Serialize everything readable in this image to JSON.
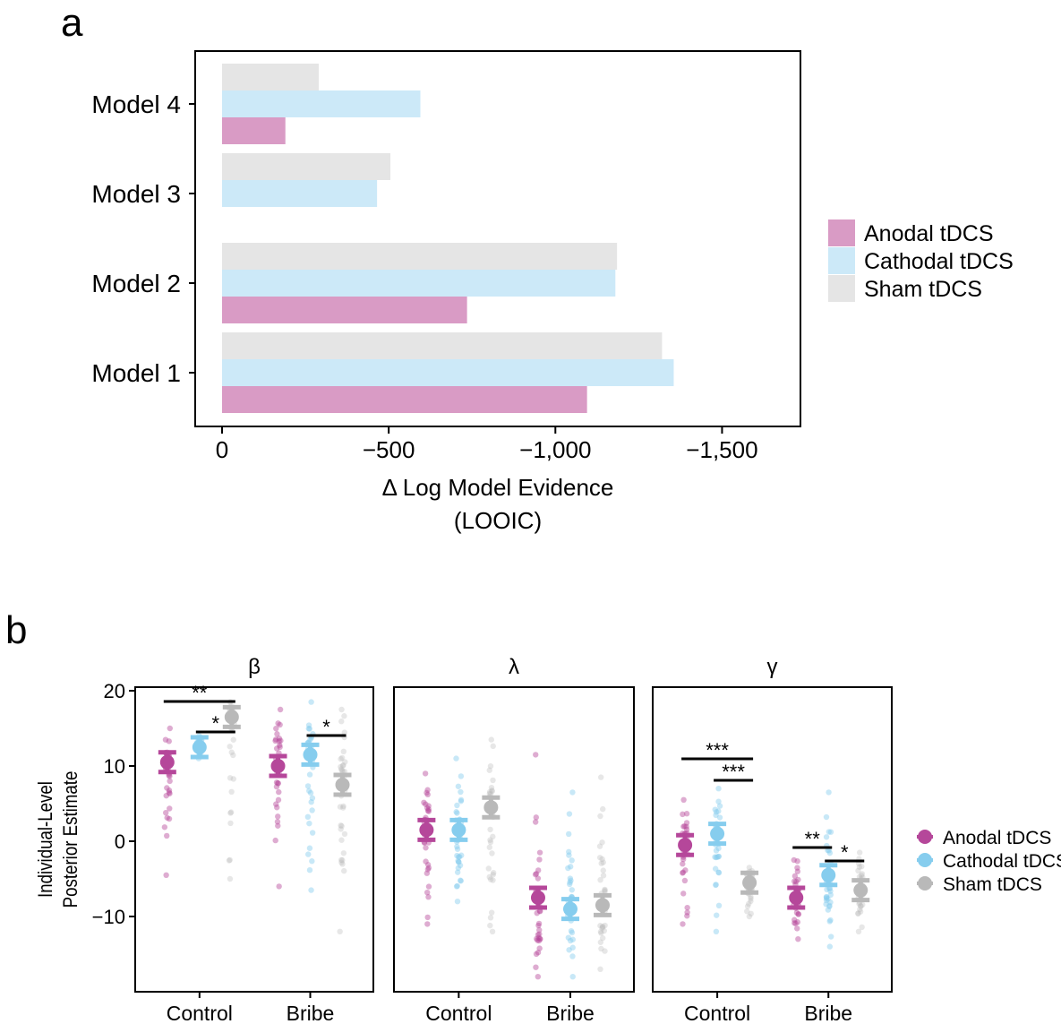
{
  "panel_labels": {
    "a": "a",
    "b": "b"
  },
  "colors": {
    "anodal": "#d99bc5",
    "cathodal": "#cce9f8",
    "sham": "#e5e5e5",
    "anodal_dot": "#b5479a",
    "cathodal_dot": "#86cdee",
    "sham_dot": "#b9b9b9"
  },
  "chart_data": [
    {
      "type": "bar",
      "orientation": "horizontal",
      "panel": "a",
      "categories": [
        "Model 1",
        "Model 2",
        "Model 3",
        "Model 4"
      ],
      "series": [
        {
          "name": "Anodal tDCS",
          "values": [
            -1095,
            -735,
            null,
            -190
          ]
        },
        {
          "name": "Cathodal tDCS",
          "values": [
            -1355,
            -1180,
            -465,
            -595
          ]
        },
        {
          "name": "Sham tDCS",
          "values": [
            -1320,
            -1185,
            -505,
            -290
          ]
        }
      ],
      "xlabel": "Δ Log Model Evidence",
      "xlabel_sub": "(LOOIC)",
      "xlim": [
        0,
        -1560
      ],
      "xticks": [
        0,
        -500,
        -1000,
        -1500
      ],
      "xtick_labels": [
        "0",
        "−500",
        "−1,000",
        "−1,500"
      ],
      "legend": [
        "Anodal tDCS",
        "Cathodal tDCS",
        "Sham tDCS"
      ],
      "legend_position": "right"
    },
    {
      "type": "scatter",
      "panel": "b",
      "ylabel": "Individual-Level Posterior Estimate",
      "ylim": [
        -19.5,
        20.5
      ],
      "yticks": [
        20,
        10,
        0,
        -10
      ],
      "ytick_labels": [
        "20",
        "10",
        "0",
        "−10"
      ],
      "categories": [
        "Control",
        "Bribe"
      ],
      "legend": [
        "Anodal tDCS",
        "Cathodal tDCS",
        "Sham tDCS"
      ],
      "legend_position": "right",
      "facets": [
        {
          "title": "β",
          "means": [
            {
              "group": "Anodal tDCS",
              "Control": 10.5,
              "Bribe": 10.0
            },
            {
              "group": "Cathodal tDCS",
              "Control": 12.5,
              "Bribe": 11.5
            },
            {
              "group": "Sham tDCS",
              "Control": 16.5,
              "Bribe": 7.5
            }
          ],
          "individual_range": [
            {
              "group": "Anodal tDCS",
              "Control": [
                -4.5,
                15.0
              ],
              "Bribe": [
                -6.0,
                17.5
              ]
            },
            {
              "group": "Cathodal tDCS",
              "Control": [
                11.0,
                14.0
              ],
              "Bribe": [
                -6.5,
                18.5
              ]
            },
            {
              "group": "Sham tDCS",
              "Control": [
                -5.0,
                18.5
              ],
              "Bribe": [
                -12.0,
                17.5
              ]
            }
          ],
          "significance": [
            {
              "label": "**",
              "from": "Anodal tDCS",
              "to": "Sham tDCS",
              "category": "Control"
            },
            {
              "label": "*",
              "from": "Cathodal tDCS",
              "to": "Sham tDCS",
              "category": "Control"
            },
            {
              "label": "*",
              "from": "Cathodal tDCS",
              "to": "Sham tDCS",
              "category": "Bribe"
            }
          ]
        },
        {
          "title": "λ",
          "means": [
            {
              "group": "Anodal tDCS",
              "Control": 1.5,
              "Bribe": -7.5
            },
            {
              "group": "Cathodal tDCS",
              "Control": 1.5,
              "Bribe": -9.0
            },
            {
              "group": "Sham tDCS",
              "Control": 4.5,
              "Bribe": -8.5
            }
          ],
          "individual_range": [
            {
              "group": "Anodal tDCS",
              "Control": [
                -11.0,
                9.0
              ],
              "Bribe": [
                -18.0,
                11.5
              ]
            },
            {
              "group": "Cathodal tDCS",
              "Control": [
                -8.0,
                11.0
              ],
              "Bribe": [
                -18.0,
                6.5
              ]
            },
            {
              "group": "Sham tDCS",
              "Control": [
                -12.0,
                13.5
              ],
              "Bribe": [
                -17.0,
                8.5
              ]
            }
          ],
          "significance": []
        },
        {
          "title": "γ",
          "means": [
            {
              "group": "Anodal tDCS",
              "Control": -0.5,
              "Bribe": -7.5
            },
            {
              "group": "Cathodal tDCS",
              "Control": 1.0,
              "Bribe": -4.5
            },
            {
              "group": "Sham tDCS",
              "Control": -5.5,
              "Bribe": -6.5
            }
          ],
          "individual_range": [
            {
              "group": "Anodal tDCS",
              "Control": [
                -11.0,
                5.5
              ],
              "Bribe": [
                -13.0,
                -2.5
              ]
            },
            {
              "group": "Cathodal tDCS",
              "Control": [
                -12.0,
                7.0
              ],
              "Bribe": [
                -14.0,
                6.5
              ]
            },
            {
              "group": "Sham tDCS",
              "Control": [
                -10.0,
                -3.5
              ],
              "Bribe": [
                -12.0,
                -1.5
              ]
            }
          ],
          "significance": [
            {
              "label": "***",
              "from": "Anodal tDCS",
              "to": "Sham tDCS",
              "category": "Control"
            },
            {
              "label": "***",
              "from": "Cathodal tDCS",
              "to": "Sham tDCS",
              "category": "Control"
            },
            {
              "label": "**",
              "from": "Anodal tDCS",
              "to": "Cathodal tDCS",
              "category": "Bribe"
            },
            {
              "label": "*",
              "from": "Cathodal tDCS",
              "to": "Sham tDCS",
              "category": "Bribe"
            }
          ]
        }
      ]
    }
  ]
}
